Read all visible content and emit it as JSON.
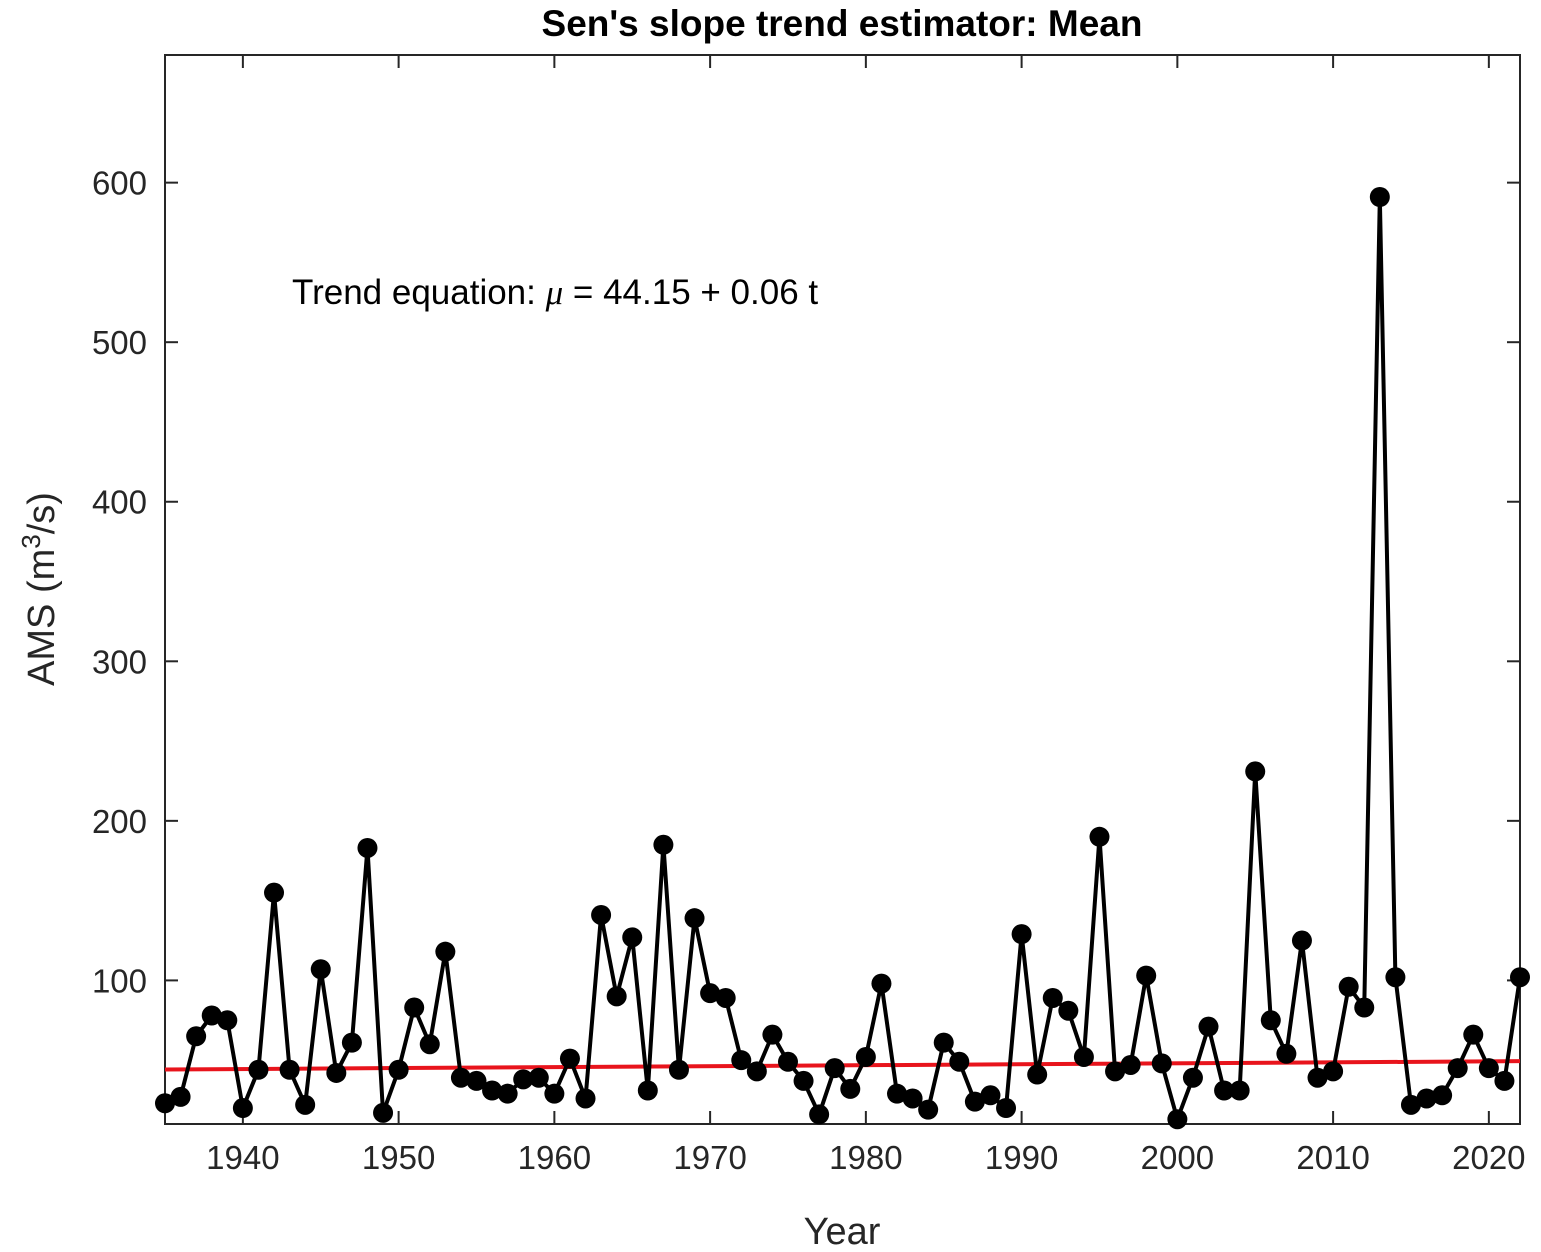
{
  "chart_data": {
    "type": "line",
    "title": "Sen's slope trend estimator: Mean",
    "xlabel": "Year",
    "ylabel": "AMS (m",
    "ylabel_sup": "3",
    "ylabel_end": "/s)",
    "annotation": {
      "prefix": "Trend equation: ",
      "symbol": "μ",
      "suffix": " = 44.15 + 0.06 t"
    },
    "xlim": [
      1935,
      2022
    ],
    "ylim": [
      10,
      680
    ],
    "xticks": [
      1940,
      1950,
      1960,
      1970,
      1980,
      1990,
      2000,
      2010,
      2020
    ],
    "yticks": [
      100,
      200,
      300,
      400,
      500,
      600
    ],
    "grid": false,
    "series": [
      {
        "kind": "observed",
        "color": "#000000",
        "x": [
          1935,
          1936,
          1937,
          1938,
          1939,
          1940,
          1941,
          1942,
          1943,
          1944,
          1945,
          1946,
          1947,
          1948,
          1949,
          1950,
          1951,
          1952,
          1953,
          1954,
          1955,
          1956,
          1957,
          1958,
          1959,
          1960,
          1961,
          1962,
          1963,
          1964,
          1965,
          1966,
          1967,
          1968,
          1969,
          1970,
          1971,
          1972,
          1973,
          1974,
          1975,
          1976,
          1977,
          1978,
          1979,
          1980,
          1981,
          1982,
          1983,
          1984,
          1985,
          1986,
          1987,
          1988,
          1989,
          1990,
          1991,
          1992,
          1993,
          1994,
          1995,
          1996,
          1997,
          1998,
          1999,
          2000,
          2001,
          2002,
          2003,
          2004,
          2005,
          2006,
          2007,
          2008,
          2009,
          2010,
          2011,
          2012,
          2013,
          2014,
          2015,
          2016,
          2017,
          2018,
          2019,
          2020,
          2021,
          2022
        ],
        "y": [
          23,
          27,
          65,
          78,
          75,
          20,
          44,
          155,
          44,
          22,
          107,
          42,
          61,
          183,
          17,
          44,
          83,
          60,
          118,
          39,
          37,
          31,
          29,
          38,
          39,
          29,
          51,
          26,
          141,
          90,
          127,
          31,
          185,
          44,
          139,
          92,
          89,
          50,
          43,
          66,
          49,
          37,
          16,
          45,
          32,
          52,
          98,
          29,
          26,
          19,
          61,
          49,
          24,
          28,
          20,
          129,
          41,
          89,
          81,
          52,
          190,
          43,
          47,
          103,
          48,
          13,
          39,
          71,
          31,
          31,
          231,
          75,
          54,
          125,
          39,
          43,
          96,
          83,
          591,
          102,
          22,
          26,
          28,
          45,
          66,
          45,
          37,
          102
        ]
      },
      {
        "kind": "trend",
        "color": "#e8141c",
        "x": [
          1935,
          2022
        ],
        "y": [
          44.15,
          49.37
        ]
      }
    ]
  }
}
